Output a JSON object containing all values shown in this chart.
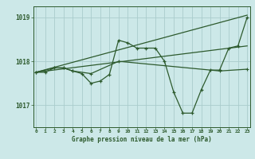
{
  "title": "Graphe pression niveau de la mer (hPa)",
  "bg_color": "#cce8e8",
  "grid_color": "#aacccc",
  "line_color": "#2d5a2d",
  "x_min": 0,
  "x_max": 23,
  "y_min": 1016.5,
  "y_max": 1019.25,
  "yticks": [
    1017,
    1018,
    1019
  ],
  "xticks": [
    0,
    1,
    2,
    3,
    4,
    5,
    6,
    7,
    8,
    9,
    10,
    11,
    12,
    13,
    14,
    15,
    16,
    17,
    18,
    19,
    20,
    21,
    22,
    23
  ],
  "series": [
    {
      "x": [
        0,
        1,
        2,
        3,
        4,
        5,
        6,
        7,
        8,
        9,
        10,
        11,
        12,
        13,
        14,
        15,
        16,
        17,
        18,
        19,
        20,
        21,
        22,
        23
      ],
      "y": [
        1017.75,
        1017.75,
        1017.85,
        1017.85,
        1017.78,
        1017.72,
        1017.5,
        1017.55,
        1017.7,
        1018.48,
        1018.42,
        1018.3,
        1018.3,
        1018.3,
        1018.0,
        1017.3,
        1016.82,
        1016.82,
        1017.35,
        1017.8,
        1017.8,
        1018.3,
        1018.35,
        1019.0
      ]
    },
    {
      "x": [
        0,
        23
      ],
      "y": [
        1017.75,
        1019.05
      ]
    },
    {
      "x": [
        0,
        23
      ],
      "y": [
        1017.75,
        1018.35
      ]
    },
    {
      "x": [
        0,
        2,
        3,
        4,
        6,
        9,
        20,
        23
      ],
      "y": [
        1017.75,
        1017.85,
        1017.85,
        1017.78,
        1017.72,
        1018.0,
        1017.78,
        1017.82
      ]
    }
  ]
}
